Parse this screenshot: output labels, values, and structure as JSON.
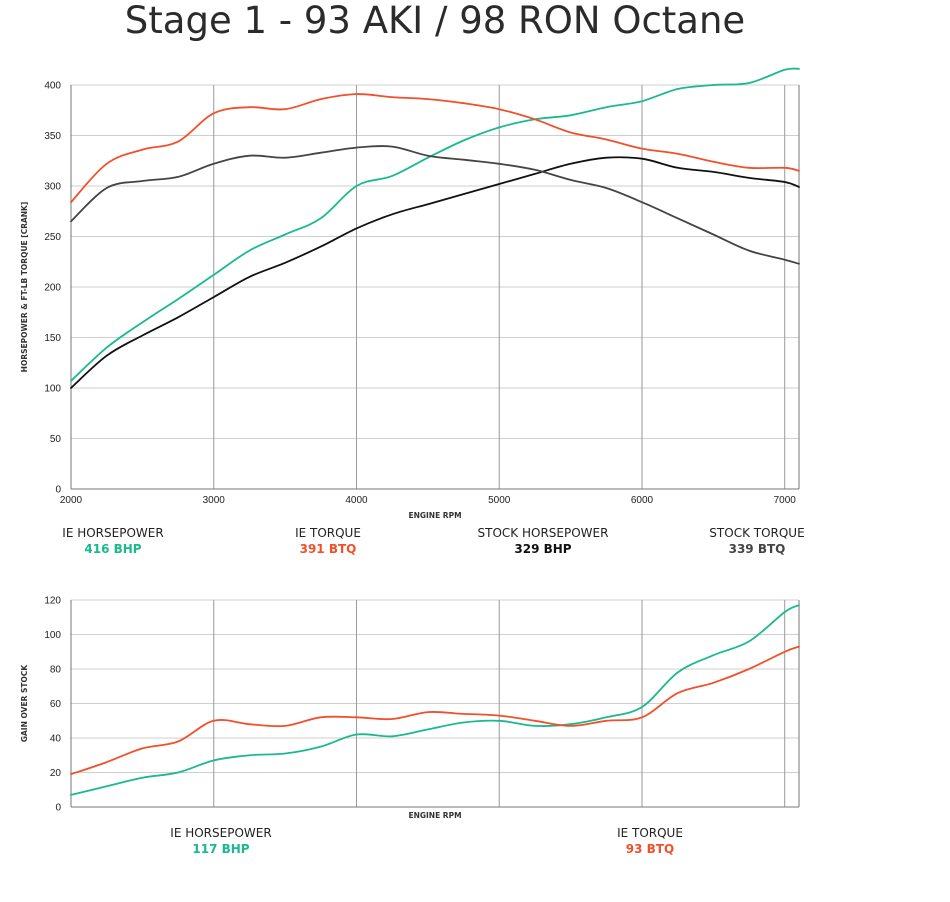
{
  "title": "Stage 1 - 93 AKI / 98 RON Octane",
  "colors": {
    "ie_hp": "#1ab98f",
    "ie_tq": "#f0502a",
    "stock_hp": "#111111",
    "stock_tq": "#444444"
  },
  "chart_data": [
    {
      "type": "line",
      "xlabel": "ENGINE RPM",
      "ylabel": "HORSEPOWER & FT-LB TORQUE [CRANK]",
      "xlim": [
        2000,
        7100
      ],
      "ylim": [
        0,
        400
      ],
      "x_ticks": [
        2000,
        3000,
        4000,
        5000,
        6000,
        7000
      ],
      "y_ticks": [
        0,
        50,
        100,
        150,
        200,
        250,
        300,
        350,
        400
      ],
      "x": [
        2000,
        2250,
        2500,
        2750,
        3000,
        3250,
        3500,
        3750,
        4000,
        4250,
        4500,
        4750,
        5000,
        5250,
        5500,
        5750,
        6000,
        6250,
        6500,
        6750,
        7000,
        7100
      ],
      "series": [
        {
          "name": "IE HORSEPOWER",
          "color_key": "ie_hp",
          "values": [
            107,
            140,
            165,
            188,
            212,
            236,
            252,
            268,
            300,
            310,
            328,
            345,
            358,
            366,
            370,
            378,
            384,
            396,
            400,
            402,
            415,
            416
          ]
        },
        {
          "name": "IE TORQUE",
          "color_key": "ie_tq",
          "values": [
            284,
            322,
            336,
            344,
            372,
            378,
            376,
            386,
            391,
            388,
            386,
            382,
            376,
            366,
            353,
            346,
            337,
            332,
            324,
            318,
            318,
            315
          ]
        },
        {
          "name": "STOCK HORSEPOWER",
          "color_key": "stock_hp",
          "values": [
            100,
            132,
            152,
            170,
            190,
            210,
            224,
            240,
            258,
            272,
            282,
            292,
            302,
            312,
            322,
            328,
            327,
            318,
            314,
            308,
            304,
            299
          ]
        },
        {
          "name": "STOCK TORQUE",
          "color_key": "stock_tq",
          "values": [
            265,
            298,
            305,
            309,
            322,
            330,
            328,
            333,
            338,
            339,
            330,
            326,
            322,
            316,
            306,
            298,
            284,
            268,
            252,
            236,
            227,
            223
          ]
        }
      ],
      "legend": [
        {
          "name": "IE HORSEPOWER",
          "value": "416 BHP",
          "color_key": "ie_hp"
        },
        {
          "name": "IE TORQUE",
          "value": "391 BTQ",
          "color_key": "ie_tq"
        },
        {
          "name": "STOCK HORSEPOWER",
          "value": "329 BHP",
          "color_key": "stock_hp"
        },
        {
          "name": "STOCK TORQUE",
          "value": "339 BTQ",
          "color_key": "stock_tq"
        }
      ]
    },
    {
      "type": "line",
      "xlabel": "ENGINE RPM",
      "ylabel": "GAIN OVER STOCK",
      "xlim": [
        2000,
        7100
      ],
      "ylim": [
        0,
        120
      ],
      "y_ticks": [
        0,
        20,
        40,
        60,
        80,
        100,
        120
      ],
      "x": [
        2000,
        2250,
        2500,
        2750,
        3000,
        3250,
        3500,
        3750,
        4000,
        4250,
        4500,
        4750,
        5000,
        5250,
        5500,
        5750,
        6000,
        6250,
        6500,
        6750,
        7000,
        7100
      ],
      "series": [
        {
          "name": "IE HORSEPOWER",
          "color_key": "ie_hp",
          "values": [
            7,
            12,
            17,
            20,
            27,
            30,
            31,
            35,
            42,
            41,
            45,
            49,
            50,
            47,
            48,
            52,
            58,
            78,
            88,
            96,
            113,
            117
          ]
        },
        {
          "name": "IE TORQUE",
          "color_key": "ie_tq",
          "values": [
            19,
            26,
            34,
            38,
            50,
            48,
            47,
            52,
            52,
            51,
            55,
            54,
            53,
            50,
            47,
            50,
            52,
            66,
            72,
            80,
            90,
            93
          ]
        }
      ],
      "legend": [
        {
          "name": "IE HORSEPOWER",
          "value": "117 BHP",
          "color_key": "ie_hp"
        },
        {
          "name": "IE TORQUE",
          "value": "93 BTQ",
          "color_key": "ie_tq"
        }
      ]
    }
  ]
}
